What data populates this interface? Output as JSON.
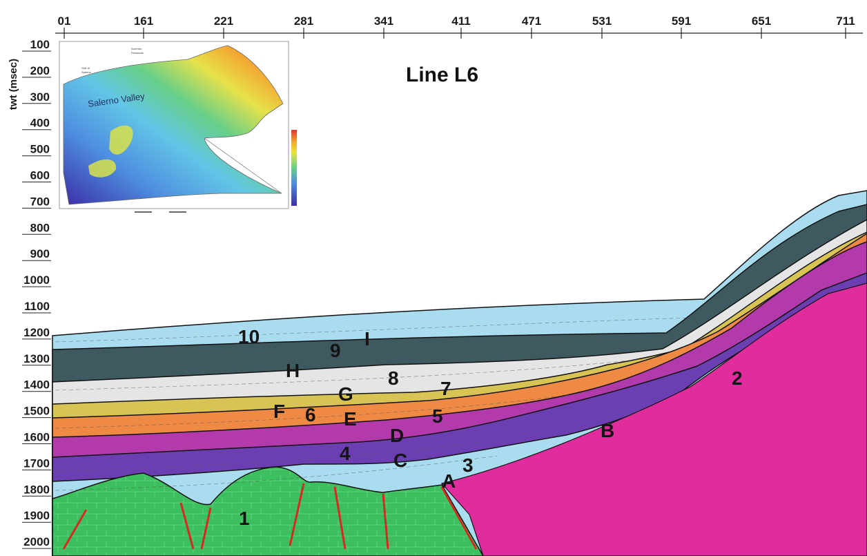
{
  "title": "Line L6",
  "y_axis_label": "twt (msec)",
  "top_axis_ticks": [
    "01",
    "161",
    "221",
    "281",
    "341",
    "411",
    "471",
    "531",
    "591",
    "651",
    "711"
  ],
  "left_axis_ticks": [
    "100",
    "200",
    "300",
    "400",
    "500",
    "600",
    "700",
    "800",
    "900",
    "1000",
    "1100",
    "1200",
    "1300",
    "1400",
    "1500",
    "1600",
    "1700",
    "1800",
    "1900",
    "2000"
  ],
  "inset": {
    "label": "Salerno Valley",
    "small_text_1": "Sorrento",
    "small_text_2": "Peninsula",
    "small_text_3": "Gulf of",
    "small_text_4": "Salerno"
  },
  "units": {
    "u1": "1",
    "u2": "2",
    "u3": "3",
    "u4": "4",
    "u5": "5",
    "u6": "6",
    "u7": "7",
    "u8": "8",
    "u9": "9",
    "u10": "10"
  },
  "horizons": {
    "A": "A",
    "B": "B",
    "C": "C",
    "D": "D",
    "E": "E",
    "F": "F",
    "G": "G",
    "H": "H",
    "I": "I"
  },
  "colors": {
    "basement": "#3cbf5e",
    "unit2": "#e02c9c",
    "light_blue": "#a9dcef",
    "purple": "#6b3fb2",
    "magenta": "#b23aaa",
    "orange": "#ee8a44",
    "yellow": "#d8c454",
    "light_gray": "#e5e5e5",
    "dark_teal": "#3e5a60",
    "fault": "#d42a1f"
  }
}
